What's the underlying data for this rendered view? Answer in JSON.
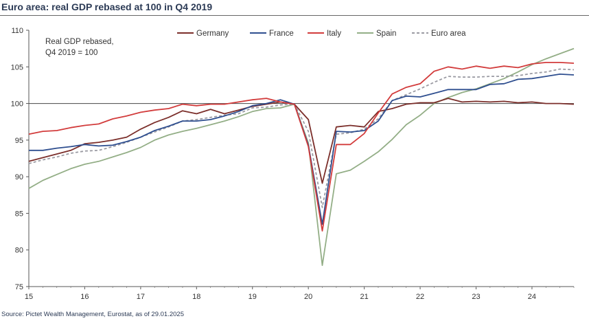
{
  "header": {
    "title": "Euro area: real GDP rebased at 100 in Q4 2019"
  },
  "footer": {
    "source": "Source: Pictet Wealth Management, Eurostat, as of 29.01.2025"
  },
  "chart_data": {
    "type": "line",
    "title": "Euro area: real GDP rebased at 100 in Q4 2019",
    "annotation": [
      "Real GDP rebased,",
      "Q4 2019 = 100"
    ],
    "xlabel": "",
    "ylabel": "",
    "x": [
      2015.0,
      2015.25,
      2015.5,
      2015.75,
      2016.0,
      2016.25,
      2016.5,
      2016.75,
      2017.0,
      2017.25,
      2017.5,
      2017.75,
      2018.0,
      2018.25,
      2018.5,
      2018.75,
      2019.0,
      2019.25,
      2019.5,
      2019.75,
      2020.0,
      2020.25,
      2020.5,
      2020.75,
      2021.0,
      2021.25,
      2021.5,
      2021.75,
      2022.0,
      2022.25,
      2022.5,
      2022.75,
      2023.0,
      2023.25,
      2023.5,
      2023.75,
      2024.0,
      2024.25,
      2024.5,
      2024.75
    ],
    "x_tick_values": [
      2015,
      2016,
      2017,
      2018,
      2019,
      2020,
      2021,
      2022,
      2023,
      2024
    ],
    "x_tick_labels": [
      "15",
      "16",
      "17",
      "18",
      "19",
      "20",
      "21",
      "22",
      "23",
      "24"
    ],
    "xlim": [
      2015,
      2024.75
    ],
    "ylim": [
      75,
      110
    ],
    "y_ticks": [
      75,
      80,
      85,
      90,
      95,
      100,
      105,
      110
    ],
    "reference_line": 100,
    "legend_position": "top",
    "series": [
      {
        "name": "Germany",
        "color": "#7b2e2a",
        "dash": "",
        "values": [
          92.1,
          92.6,
          93.1,
          93.6,
          94.5,
          94.7,
          95.0,
          95.4,
          96.5,
          97.4,
          98.1,
          99.0,
          98.6,
          99.2,
          98.6,
          99.1,
          99.6,
          99.9,
          100.2,
          99.9,
          97.8,
          89.1,
          96.8,
          97.0,
          96.8,
          98.9,
          99.3,
          99.9,
          100.1,
          100.1,
          100.7,
          100.2,
          100.3,
          100.2,
          100.3,
          100.1,
          100.2,
          100.0,
          100.0,
          99.9
        ]
      },
      {
        "name": "France",
        "color": "#2e4e8f",
        "dash": "",
        "values": [
          93.6,
          93.6,
          93.9,
          94.1,
          94.4,
          94.2,
          94.3,
          94.8,
          95.4,
          96.3,
          96.9,
          97.6,
          97.6,
          97.8,
          98.3,
          98.9,
          99.7,
          100.0,
          100.5,
          99.9,
          94.3,
          83.5,
          96.2,
          96.1,
          96.3,
          97.6,
          100.4,
          101.0,
          100.9,
          101.4,
          101.9,
          101.9,
          101.9,
          102.6,
          102.7,
          103.3,
          103.4,
          103.7,
          104.0,
          103.9
        ]
      },
      {
        "name": "Italy",
        "color": "#d23b3b",
        "dash": "",
        "values": [
          95.8,
          96.2,
          96.3,
          96.7,
          97.0,
          97.2,
          97.9,
          98.3,
          98.8,
          99.1,
          99.3,
          99.9,
          99.7,
          99.9,
          99.9,
          100.2,
          100.5,
          100.7,
          100.2,
          99.9,
          94.1,
          82.6,
          94.4,
          94.4,
          95.9,
          98.7,
          101.3,
          102.2,
          102.7,
          104.4,
          105.0,
          104.7,
          105.1,
          104.8,
          105.1,
          104.9,
          105.4,
          105.6,
          105.6,
          105.5
        ]
      },
      {
        "name": "Spain",
        "color": "#93ae86",
        "dash": "",
        "values": [
          88.4,
          89.5,
          90.3,
          91.1,
          91.7,
          92.1,
          92.7,
          93.3,
          94.0,
          95.0,
          95.7,
          96.2,
          96.6,
          97.1,
          97.6,
          98.2,
          98.9,
          99.3,
          99.4,
          99.9,
          94.6,
          77.9,
          90.4,
          90.9,
          92.1,
          93.4,
          95.1,
          97.1,
          98.4,
          100.0,
          100.8,
          101.5,
          102.0,
          102.7,
          103.4,
          104.3,
          105.3,
          106.1,
          106.8,
          107.5
        ]
      },
      {
        "name": "Euro area",
        "color": "#9a9aa2",
        "dash": "4,3",
        "values": [
          91.8,
          92.3,
          92.7,
          93.2,
          93.5,
          93.6,
          94.1,
          94.7,
          95.4,
          96.1,
          96.8,
          97.6,
          97.8,
          98.1,
          98.4,
          98.6,
          99.4,
          99.5,
          99.8,
          99.9,
          96.2,
          85.8,
          95.8,
          96.0,
          96.5,
          97.9,
          100.4,
          101.2,
          102.0,
          102.9,
          103.7,
          103.6,
          103.6,
          103.7,
          103.7,
          103.8,
          104.1,
          104.3,
          104.7,
          104.6
        ]
      }
    ]
  }
}
